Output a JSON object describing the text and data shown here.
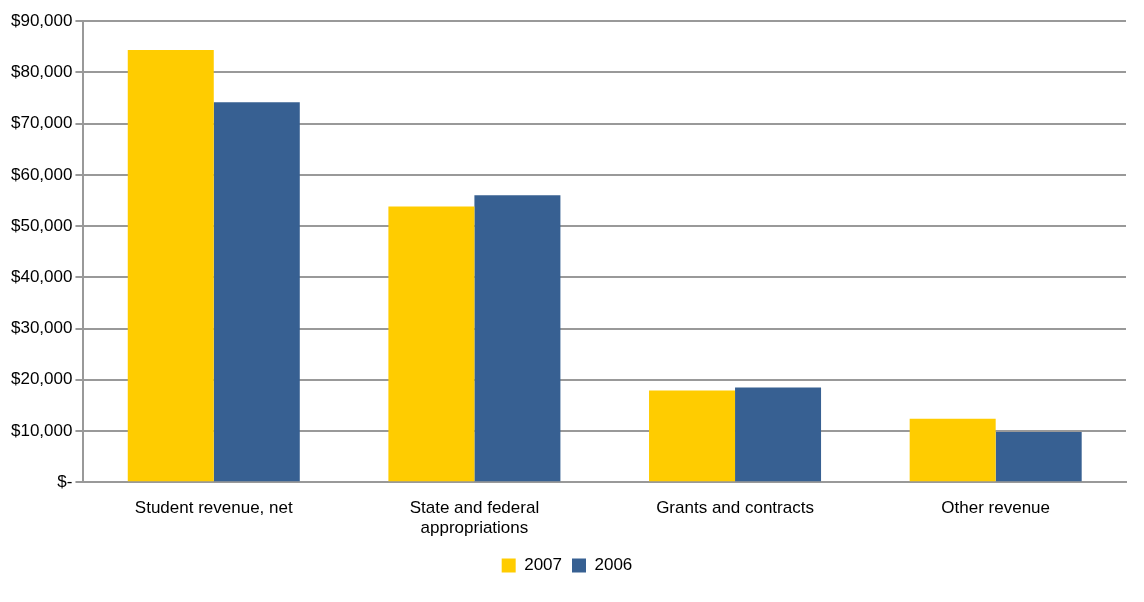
{
  "chart_data": {
    "type": "bar",
    "categories": [
      "Student revenue, net",
      "State and federal appropriations",
      "Grants and contracts",
      "Other revenue"
    ],
    "series": [
      {
        "name": "2007",
        "color": "#ffcc00",
        "values": [
          84400,
          53800,
          17900,
          12400
        ]
      },
      {
        "name": "2006",
        "color": "#376092",
        "values": [
          74200,
          56000,
          18500,
          9800
        ]
      }
    ],
    "ylim": [
      0,
      90000
    ],
    "yticks": [
      {
        "value": 0,
        "label": "$-"
      },
      {
        "value": 10000,
        "label": "$10,000"
      },
      {
        "value": 20000,
        "label": "$20,000"
      },
      {
        "value": 30000,
        "label": "$30,000"
      },
      {
        "value": 40000,
        "label": "$40,000"
      },
      {
        "value": 50000,
        "label": "$50,000"
      },
      {
        "value": 60000,
        "label": "$60,000"
      },
      {
        "value": 70000,
        "label": "$70,000"
      },
      {
        "value": 80000,
        "label": "$80,000"
      },
      {
        "value": 90000,
        "label": "$90,000"
      }
    ],
    "grid": "y",
    "legend": "bottom"
  }
}
